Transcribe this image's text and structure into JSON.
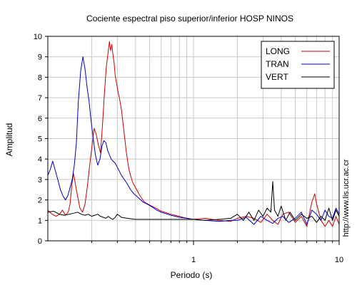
{
  "chart_data": {
    "type": "line",
    "title": "Cociente espectral piso superior/inferior  HOSP NINOS",
    "xlabel": "Periodo (s)",
    "ylabel": "Amplitud",
    "xscale": "log",
    "xlim": [
      0.1,
      10
    ],
    "ylim": [
      0,
      10
    ],
    "xticks": [
      1,
      10
    ],
    "xtick_labels": [
      "1",
      "10"
    ],
    "yticks": [
      0,
      1,
      2,
      3,
      4,
      5,
      6,
      7,
      8,
      9,
      10
    ],
    "ytick_labels": [
      "0",
      "1",
      "2",
      "3",
      "4",
      "5",
      "6",
      "7",
      "8",
      "9",
      "10"
    ],
    "grid": true,
    "legend_position": "top-right",
    "side_label": "http://www.lis.ucr.ac.cr",
    "series": [
      {
        "name": "LONG",
        "color": "#cc0000",
        "x": [
          0.1,
          0.107,
          0.114,
          0.12,
          0.126,
          0.132,
          0.138,
          0.142,
          0.146,
          0.15,
          0.158,
          0.166,
          0.173,
          0.18,
          0.187,
          0.193,
          0.2,
          0.208,
          0.215,
          0.222,
          0.23,
          0.238,
          0.245,
          0.252,
          0.26,
          0.265,
          0.27,
          0.275,
          0.28,
          0.285,
          0.29,
          0.295,
          0.3,
          0.305,
          0.31,
          0.32,
          0.33,
          0.345,
          0.36,
          0.38,
          0.4,
          0.43,
          0.46,
          0.5,
          0.55,
          0.6,
          0.7,
          0.8,
          0.9,
          1.0,
          1.2,
          1.5,
          1.8,
          2.0,
          2.3,
          2.6,
          2.9,
          3.2,
          3.5,
          3.8,
          4.1,
          4.5,
          5.0,
          5.5,
          6.0,
          6.5,
          6.8,
          7.0,
          7.5,
          8.0,
          8.5,
          9.0,
          9.5,
          10.0
        ],
        "y": [
          1.5,
          1.3,
          1.2,
          1.3,
          1.5,
          1.25,
          1.4,
          1.8,
          2.7,
          3.3,
          2.4,
          1.6,
          1.4,
          1.8,
          2.7,
          3.6,
          4.5,
          5.5,
          5.2,
          4.7,
          4.3,
          5.8,
          7.3,
          8.5,
          9.3,
          9.75,
          9.3,
          9.6,
          9.1,
          8.7,
          8.1,
          7.8,
          7.5,
          7.2,
          7.0,
          6.4,
          5.6,
          4.4,
          3.5,
          2.9,
          2.6,
          2.2,
          1.9,
          1.75,
          1.6,
          1.45,
          1.3,
          1.2,
          1.1,
          1.05,
          1.1,
          1.0,
          0.95,
          1.1,
          1.2,
          1.1,
          0.9,
          1.3,
          1.0,
          0.8,
          1.3,
          1.4,
          0.9,
          1.2,
          0.7,
          1.9,
          2.3,
          1.8,
          1.0,
          0.7,
          1.0,
          0.7,
          1.2,
          0.8
        ]
      },
      {
        "name": "TRAN",
        "color": "#0000cc",
        "x": [
          0.1,
          0.104,
          0.108,
          0.112,
          0.117,
          0.122,
          0.127,
          0.132,
          0.137,
          0.142,
          0.147,
          0.152,
          0.157,
          0.162,
          0.168,
          0.174,
          0.18,
          0.186,
          0.192,
          0.198,
          0.205,
          0.212,
          0.22,
          0.228,
          0.235,
          0.242,
          0.25,
          0.258,
          0.265,
          0.272,
          0.28,
          0.29,
          0.3,
          0.31,
          0.32,
          0.335,
          0.35,
          0.37,
          0.39,
          0.42,
          0.45,
          0.48,
          0.52,
          0.56,
          0.6,
          0.7,
          0.8,
          0.9,
          1.0,
          1.2,
          1.5,
          1.8,
          2.0,
          2.3,
          2.6,
          2.9,
          3.2,
          3.5,
          3.8,
          4.1,
          4.5,
          5.0,
          5.5,
          6.0,
          6.5,
          7.0,
          7.5,
          8.0,
          8.5,
          9.0,
          9.5,
          10.0
        ],
        "y": [
          3.2,
          3.5,
          3.9,
          3.5,
          3.0,
          2.5,
          2.2,
          2.0,
          2.2,
          2.6,
          3.0,
          3.7,
          4.8,
          6.8,
          8.3,
          9.0,
          8.4,
          7.5,
          6.8,
          5.9,
          5.0,
          4.2,
          3.7,
          4.0,
          4.6,
          4.9,
          4.8,
          4.4,
          4.2,
          4.0,
          3.9,
          3.8,
          3.6,
          3.4,
          3.2,
          3.0,
          2.8,
          2.5,
          2.3,
          2.1,
          1.9,
          1.8,
          1.65,
          1.5,
          1.4,
          1.25,
          1.15,
          1.1,
          1.05,
          1.0,
          0.95,
          1.0,
          1.0,
          1.15,
          0.8,
          1.2,
          1.0,
          0.85,
          1.1,
          1.2,
          0.9,
          1.1,
          1.4,
          0.8,
          1.5,
          1.3,
          1.0,
          1.5,
          1.2,
          1.1,
          1.6,
          1.3
        ]
      },
      {
        "name": "VERT",
        "color": "#000000",
        "x": [
          0.1,
          0.11,
          0.12,
          0.13,
          0.14,
          0.15,
          0.16,
          0.17,
          0.18,
          0.19,
          0.2,
          0.21,
          0.22,
          0.23,
          0.24,
          0.25,
          0.26,
          0.27,
          0.28,
          0.29,
          0.3,
          0.32,
          0.35,
          0.4,
          0.5,
          0.6,
          0.7,
          0.8,
          0.9,
          1.0,
          1.2,
          1.5,
          1.8,
          2.0,
          2.2,
          2.4,
          2.6,
          2.8,
          3.0,
          3.2,
          3.4,
          3.5,
          3.6,
          3.8,
          4.0,
          4.3,
          4.6,
          5.0,
          5.5,
          6.0,
          6.5,
          7.0,
          7.5,
          8.0,
          8.5,
          9.0,
          9.5,
          10.0
        ],
        "y": [
          1.4,
          1.45,
          1.3,
          1.25,
          1.3,
          1.35,
          1.4,
          1.3,
          1.25,
          1.3,
          1.2,
          1.25,
          1.3,
          1.2,
          1.15,
          1.1,
          1.2,
          1.1,
          1.05,
          1.15,
          1.3,
          1.15,
          1.1,
          1.05,
          1.05,
          1.05,
          1.05,
          1.05,
          1.05,
          1.05,
          1.0,
          1.05,
          1.1,
          1.3,
          1.0,
          1.4,
          1.0,
          1.5,
          1.2,
          1.6,
          1.4,
          2.9,
          1.5,
          1.2,
          1.7,
          1.0,
          1.4,
          1.0,
          1.3,
          1.1,
          1.2,
          0.9,
          1.2,
          1.0,
          1.6,
          1.0,
          1.5,
          1.2
        ]
      }
    ]
  }
}
